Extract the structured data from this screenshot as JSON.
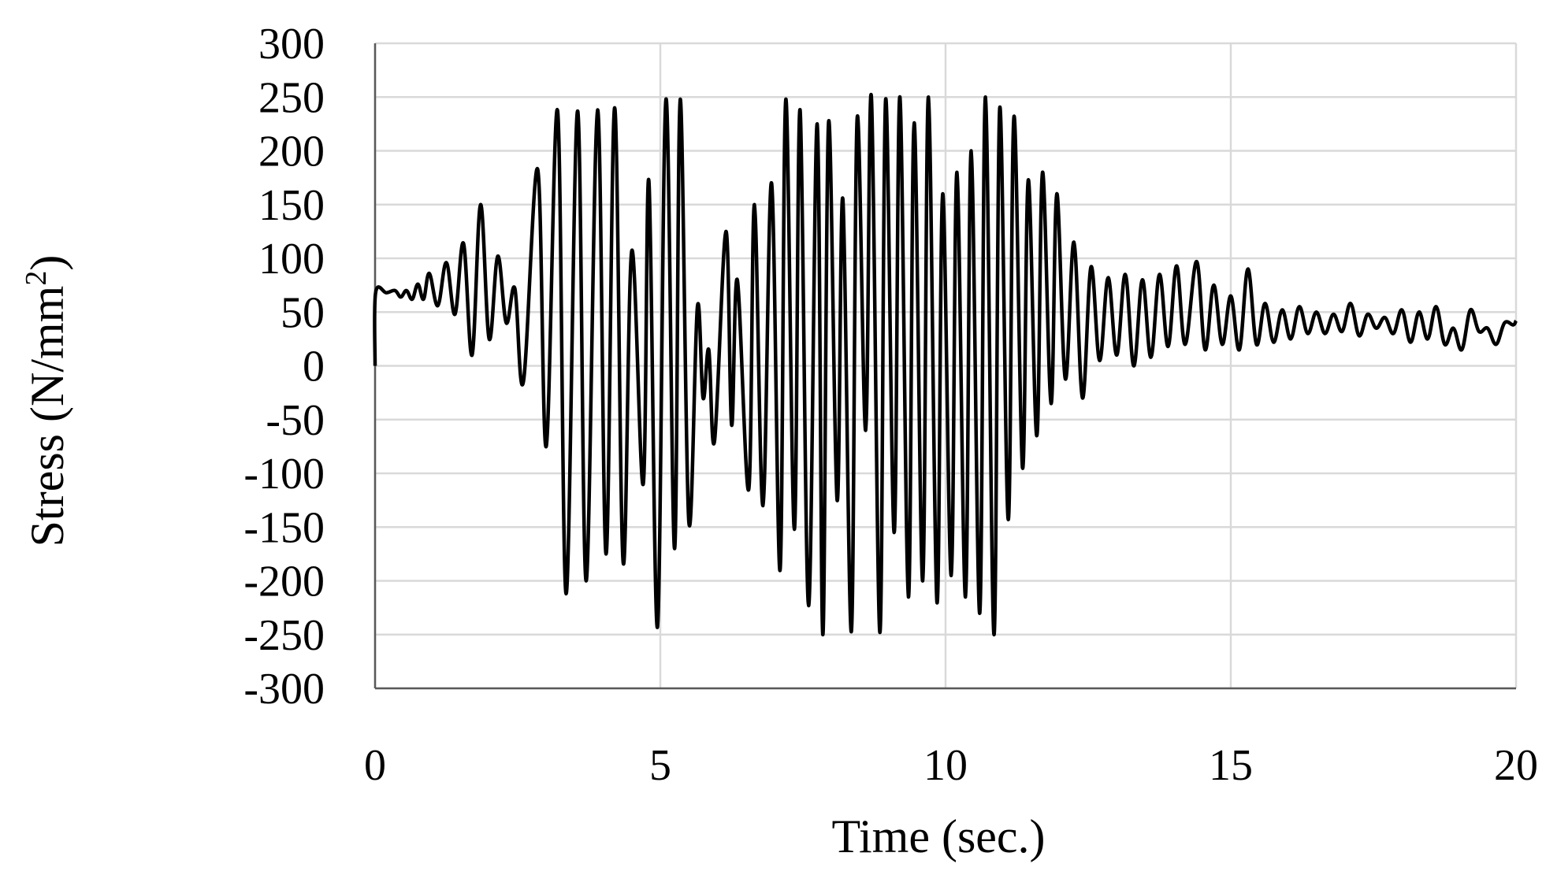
{
  "chart_data": {
    "type": "line",
    "title": "",
    "xlabel": "Time (sec.)",
    "ylabel_main": "Stress (N/mm",
    "ylabel_sup": "2",
    "ylabel_close": ")",
    "xlim": [
      0,
      20
    ],
    "ylim": [
      -300,
      300
    ],
    "x_ticks": [
      0,
      5,
      10,
      15,
      20
    ],
    "y_ticks": [
      300,
      250,
      200,
      150,
      100,
      50,
      0,
      -50,
      -100,
      -150,
      -200,
      -250,
      -300
    ],
    "x_tick_labels": [
      "0",
      "5",
      "10",
      "15",
      "20"
    ],
    "y_tick_labels": [
      "300",
      "250",
      "200",
      "150",
      "100",
      "50",
      "0",
      "-50",
      "-100",
      "-150",
      "-200",
      "-250",
      "-300"
    ],
    "grid": true,
    "line_color": "#000000",
    "grid_color": "#d9d9d9",
    "series": [
      {
        "points": [
          [
            0.0,
            0
          ],
          [
            0.01,
            68
          ],
          [
            0.2,
            68
          ],
          [
            0.35,
            70
          ],
          [
            0.45,
            64
          ],
          [
            0.55,
            70
          ],
          [
            0.65,
            62
          ],
          [
            0.75,
            76
          ],
          [
            0.85,
            62
          ],
          [
            0.95,
            86
          ],
          [
            1.1,
            56
          ],
          [
            1.25,
            96
          ],
          [
            1.4,
            48
          ],
          [
            1.55,
            114
          ],
          [
            1.7,
            10
          ],
          [
            1.85,
            150
          ],
          [
            2.0,
            25
          ],
          [
            2.15,
            102
          ],
          [
            2.3,
            40
          ],
          [
            2.45,
            72
          ],
          [
            2.6,
            -15
          ],
          [
            2.85,
            183
          ],
          [
            3.0,
            -75
          ],
          [
            3.2,
            237
          ],
          [
            3.35,
            -212
          ],
          [
            3.55,
            237
          ],
          [
            3.7,
            -200
          ],
          [
            3.9,
            238
          ],
          [
            4.05,
            -175
          ],
          [
            4.2,
            240
          ],
          [
            4.35,
            -183
          ],
          [
            4.5,
            107
          ],
          [
            4.7,
            -110
          ],
          [
            4.8,
            172
          ],
          [
            4.95,
            -243
          ],
          [
            5.1,
            248
          ],
          [
            5.25,
            -170
          ],
          [
            5.35,
            248
          ],
          [
            5.5,
            -145
          ],
          [
            5.65,
            55
          ],
          [
            5.75,
            -30
          ],
          [
            5.85,
            15
          ],
          [
            5.95,
            -70
          ],
          [
            6.15,
            125
          ],
          [
            6.25,
            -55
          ],
          [
            6.35,
            80
          ],
          [
            6.55,
            -115
          ],
          [
            6.65,
            150
          ],
          [
            6.8,
            -130
          ],
          [
            6.95,
            170
          ],
          [
            7.1,
            -190
          ],
          [
            7.2,
            248
          ],
          [
            7.35,
            -152
          ],
          [
            7.45,
            238
          ],
          [
            7.6,
            -223
          ],
          [
            7.75,
            225
          ],
          [
            7.85,
            -250
          ],
          [
            7.95,
            227
          ],
          [
            8.1,
            -125
          ],
          [
            8.2,
            155
          ],
          [
            8.35,
            -247
          ],
          [
            8.45,
            230
          ],
          [
            8.6,
            -60
          ],
          [
            8.7,
            250
          ],
          [
            8.85,
            -248
          ],
          [
            8.95,
            248
          ],
          [
            9.1,
            -155
          ],
          [
            9.2,
            250
          ],
          [
            9.35,
            -215
          ],
          [
            9.45,
            226
          ],
          [
            9.6,
            -200
          ],
          [
            9.7,
            250
          ],
          [
            9.85,
            -220
          ],
          [
            9.95,
            160
          ],
          [
            10.1,
            -195
          ],
          [
            10.2,
            180
          ],
          [
            10.35,
            -215
          ],
          [
            10.45,
            200
          ],
          [
            10.6,
            -230
          ],
          [
            10.7,
            250
          ],
          [
            10.85,
            -250
          ],
          [
            10.95,
            240
          ],
          [
            11.1,
            -143
          ],
          [
            11.2,
            232
          ],
          [
            11.35,
            -95
          ],
          [
            11.45,
            173
          ],
          [
            11.6,
            -65
          ],
          [
            11.7,
            180
          ],
          [
            11.85,
            -35
          ],
          [
            11.95,
            160
          ],
          [
            12.1,
            -12
          ],
          [
            12.25,
            115
          ],
          [
            12.4,
            -30
          ],
          [
            12.55,
            92
          ],
          [
            12.7,
            5
          ],
          [
            12.85,
            82
          ],
          [
            13.0,
            10
          ],
          [
            13.15,
            85
          ],
          [
            13.3,
            0
          ],
          [
            13.45,
            80
          ],
          [
            13.6,
            8
          ],
          [
            13.75,
            85
          ],
          [
            13.9,
            18
          ],
          [
            14.05,
            93
          ],
          [
            14.2,
            20
          ],
          [
            14.4,
            97
          ],
          [
            14.55,
            15
          ],
          [
            14.7,
            75
          ],
          [
            14.85,
            20
          ],
          [
            15.0,
            65
          ],
          [
            15.15,
            15
          ],
          [
            15.3,
            90
          ],
          [
            15.45,
            20
          ],
          [
            15.6,
            58
          ],
          [
            15.75,
            22
          ],
          [
            15.9,
            52
          ],
          [
            16.05,
            25
          ],
          [
            16.2,
            55
          ],
          [
            16.35,
            30
          ],
          [
            16.5,
            50
          ],
          [
            16.65,
            30
          ],
          [
            16.8,
            48
          ],
          [
            16.95,
            32
          ],
          [
            17.1,
            58
          ],
          [
            17.25,
            28
          ],
          [
            17.4,
            48
          ],
          [
            17.55,
            35
          ],
          [
            17.7,
            45
          ],
          [
            17.85,
            30
          ],
          [
            18.0,
            52
          ],
          [
            18.15,
            22
          ],
          [
            18.3,
            50
          ],
          [
            18.45,
            25
          ],
          [
            18.6,
            55
          ],
          [
            18.75,
            20
          ],
          [
            18.9,
            35
          ],
          [
            19.05,
            15
          ],
          [
            19.2,
            52
          ],
          [
            19.35,
            32
          ],
          [
            19.5,
            35
          ],
          [
            19.65,
            20
          ],
          [
            19.8,
            40
          ],
          [
            19.95,
            38
          ],
          [
            20.0,
            42
          ]
        ]
      }
    ]
  }
}
